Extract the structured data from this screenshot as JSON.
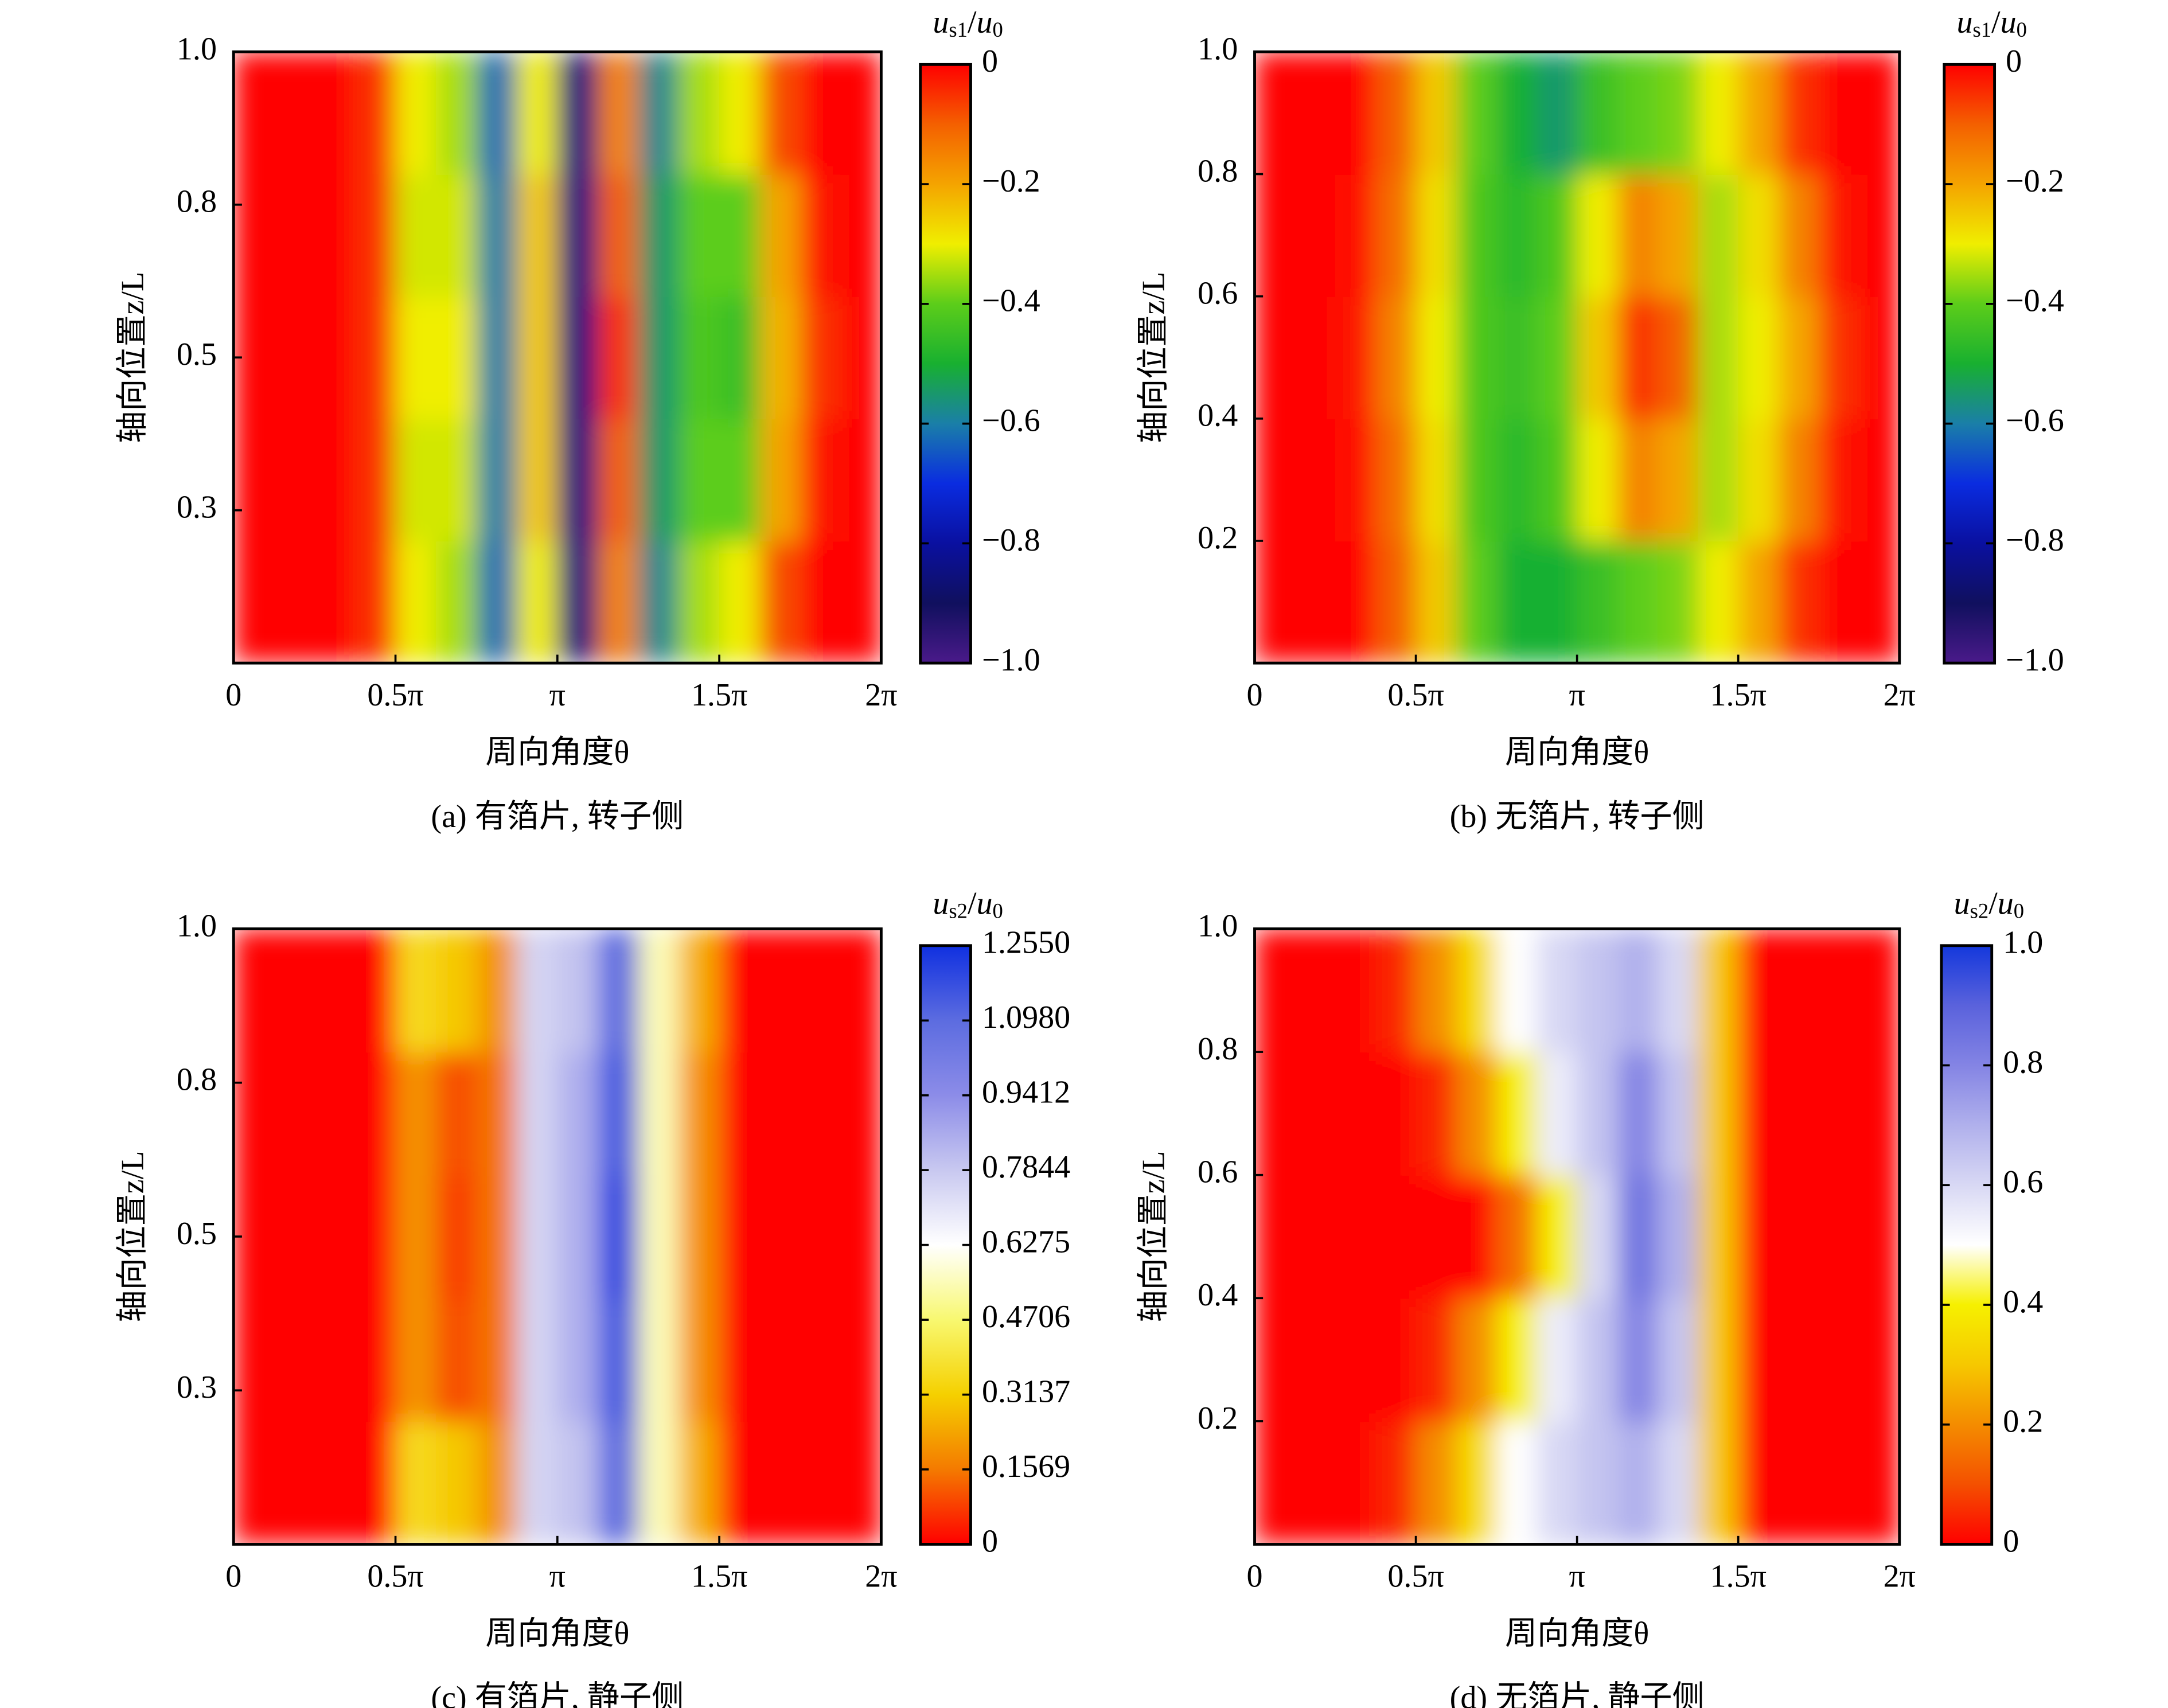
{
  "chart_data": [
    {
      "type": "heatmap",
      "caption": "(a) 有箔片, 转子侧",
      "x_label": "周向角度θ",
      "y_label": "轴向位置z/L",
      "colorbar_label": [
        "u",
        "s1",
        "/u",
        "0"
      ],
      "x": [
        0.1963,
        0.589,
        0.9817,
        1.3744,
        1.7671,
        2.1598,
        2.5525,
        2.9452,
        3.3379,
        3.7306,
        4.1233,
        4.516,
        4.9087,
        5.3014,
        5.6941,
        6.0868
      ],
      "y": [
        0.1,
        0.3,
        0.5,
        0.7,
        0.9
      ],
      "z": [
        [
          0,
          0,
          0,
          -0.05,
          -0.3,
          -0.35,
          -0.62,
          -0.3,
          -0.85,
          -0.15,
          -0.58,
          -0.35,
          -0.3,
          -0.08,
          0,
          0
        ],
        [
          0,
          0,
          0,
          -0.05,
          -0.32,
          -0.32,
          -0.6,
          -0.25,
          -0.85,
          -0.1,
          -0.55,
          -0.4,
          -0.4,
          -0.2,
          -0.02,
          0
        ],
        [
          0,
          0,
          0,
          -0.05,
          -0.3,
          -0.3,
          -0.6,
          -0.25,
          -0.85,
          -0.05,
          -0.55,
          -0.42,
          -0.45,
          -0.22,
          -0.05,
          0
        ],
        [
          0,
          0,
          0,
          -0.05,
          -0.32,
          -0.32,
          -0.6,
          -0.25,
          -0.85,
          -0.1,
          -0.55,
          -0.4,
          -0.4,
          -0.2,
          -0.02,
          0
        ],
        [
          0,
          0,
          0,
          -0.05,
          -0.3,
          -0.35,
          -0.62,
          -0.3,
          -0.85,
          -0.15,
          -0.58,
          -0.35,
          -0.3,
          -0.08,
          0,
          0
        ]
      ],
      "xlim": [
        0,
        6.2832
      ],
      "ylim": [
        0,
        1
      ],
      "xticks": [
        0,
        {
          "value": 1.5708,
          "label": "0.5π"
        },
        {
          "value": 3.1416,
          "label": "π"
        },
        {
          "value": 4.7124,
          "label": "1.5π"
        },
        {
          "value": 6.2832,
          "label": "2π"
        }
      ],
      "yticks": [
        {
          "value": 0.25,
          "label": "0.3"
        },
        0.5,
        {
          "value": 0.75,
          "label": "0.8"
        },
        {
          "value": 1,
          "label": "1.0"
        }
      ],
      "zlim": [
        -1,
        0
      ],
      "zticks": [
        {
          "value": -1,
          "label": "−1.0"
        },
        {
          "value": -0.8,
          "label": "−0.8"
        },
        {
          "value": -0.6,
          "label": "−0.6"
        },
        {
          "value": -0.4,
          "label": "−0.4"
        },
        {
          "value": -0.2,
          "label": "−0.2"
        },
        0
      ],
      "colormap": [
        "#4a1a8a",
        "#10105e",
        "#0a10a0",
        "#0a2ce0",
        "#1a7fa8",
        "#18b030",
        "#5ccd1a",
        "#f0ee00",
        "#f4a400",
        "#f46000",
        "#ff0000"
      ]
    },
    {
      "type": "heatmap",
      "caption": "(b) 无箔片, 转子侧",
      "x_label": "周向角度θ",
      "y_label": "轴向位置z/L",
      "colorbar_label": [
        "u",
        "s1",
        "/u",
        "0"
      ],
      "x": [
        0.1963,
        0.589,
        0.9817,
        1.3744,
        1.7671,
        2.1598,
        2.5525,
        2.9452,
        3.3379,
        3.7306,
        4.1233,
        4.516,
        4.9087,
        5.3014,
        5.6941,
        6.0868
      ],
      "y": [
        0.1,
        0.3,
        0.5,
        0.7,
        0.9
      ],
      "z": [
        [
          0,
          0,
          0,
          -0.1,
          -0.25,
          -0.4,
          -0.5,
          -0.5,
          -0.45,
          -0.4,
          -0.38,
          -0.3,
          -0.2,
          -0.05,
          0,
          0
        ],
        [
          0,
          0,
          -0.01,
          -0.12,
          -0.28,
          -0.42,
          -0.47,
          -0.42,
          -0.3,
          -0.15,
          -0.2,
          -0.35,
          -0.28,
          -0.15,
          -0.02,
          0
        ],
        [
          0,
          0,
          -0.02,
          -0.15,
          -0.3,
          -0.42,
          -0.45,
          -0.4,
          -0.25,
          -0.05,
          -0.1,
          -0.35,
          -0.3,
          -0.2,
          -0.05,
          0
        ],
        [
          0,
          0,
          -0.01,
          -0.12,
          -0.28,
          -0.42,
          -0.47,
          -0.42,
          -0.3,
          -0.15,
          -0.2,
          -0.35,
          -0.28,
          -0.15,
          -0.02,
          0
        ],
        [
          0,
          0,
          0,
          -0.1,
          -0.25,
          -0.4,
          -0.5,
          -0.55,
          -0.45,
          -0.4,
          -0.38,
          -0.3,
          -0.2,
          -0.05,
          0,
          0
        ]
      ],
      "xlim": [
        0,
        6.2832
      ],
      "ylim": [
        0,
        1
      ],
      "xticks": [
        0,
        {
          "value": 1.5708,
          "label": "0.5π"
        },
        {
          "value": 3.1416,
          "label": "π"
        },
        {
          "value": 4.7124,
          "label": "1.5π"
        },
        {
          "value": 6.2832,
          "label": "2π"
        }
      ],
      "yticks": [
        0.2,
        0.4,
        0.6,
        0.8,
        {
          "value": 1,
          "label": "1.0"
        }
      ],
      "zlim": [
        -1,
        0
      ],
      "zticks": [
        {
          "value": -1,
          "label": "−1.0"
        },
        {
          "value": -0.8,
          "label": "−0.8"
        },
        {
          "value": -0.6,
          "label": "−0.6"
        },
        {
          "value": -0.4,
          "label": "−0.4"
        },
        {
          "value": -0.2,
          "label": "−0.2"
        },
        0
      ],
      "colormap": [
        "#4a1a8a",
        "#10105e",
        "#0a10a0",
        "#0a2ce0",
        "#1a7fa8",
        "#18b030",
        "#5ccd1a",
        "#f0ee00",
        "#f4a400",
        "#f46000",
        "#ff0000"
      ]
    },
    {
      "type": "heatmap",
      "caption": "(c) 有箔片, 静子侧",
      "x_label": "周向角度θ",
      "y_label": "轴向位置z/L",
      "colorbar_label": [
        "u",
        "s2",
        "/u",
        "0"
      ],
      "x": [
        0.1963,
        0.589,
        0.9817,
        1.3744,
        1.7671,
        2.1598,
        2.5525,
        2.9452,
        3.3379,
        3.7306,
        4.1233,
        4.516,
        4.9087,
        5.3014,
        5.6941,
        6.0868
      ],
      "y": [
        0.1,
        0.3,
        0.5,
        0.7,
        0.9
      ],
      "z": [
        [
          0,
          0,
          0,
          0,
          0.35,
          0.3,
          0.2,
          0.75,
          0.8,
          1.1,
          0.55,
          0.25,
          0,
          0,
          0,
          0
        ],
        [
          0,
          0,
          0,
          0,
          0.2,
          0.1,
          0.15,
          0.75,
          0.85,
          1.15,
          0.55,
          0.2,
          0,
          0,
          0,
          0
        ],
        [
          0,
          0,
          0,
          0,
          0.2,
          0.08,
          0.15,
          0.75,
          0.85,
          1.2,
          0.55,
          0.2,
          0,
          0,
          0,
          0
        ],
        [
          0,
          0,
          0,
          0,
          0.2,
          0.1,
          0.15,
          0.75,
          0.85,
          1.15,
          0.55,
          0.2,
          0,
          0,
          0,
          0
        ],
        [
          0,
          0,
          0,
          0,
          0.35,
          0.3,
          0.2,
          0.75,
          0.8,
          1.1,
          0.55,
          0.25,
          0,
          0,
          0,
          0
        ]
      ],
      "xlim": [
        0,
        6.2832
      ],
      "ylim": [
        0,
        1
      ],
      "xticks": [
        0,
        {
          "value": 1.5708,
          "label": "0.5π"
        },
        {
          "value": 3.1416,
          "label": "π"
        },
        {
          "value": 4.7124,
          "label": "1.5π"
        },
        {
          "value": 6.2832,
          "label": "2π"
        }
      ],
      "yticks": [
        {
          "value": 0.25,
          "label": "0.3"
        },
        0.5,
        {
          "value": 0.75,
          "label": "0.8"
        },
        {
          "value": 1,
          "label": "1.0"
        }
      ],
      "zlim": [
        0,
        1.255
      ],
      "zticks": [
        0,
        0.1569,
        0.3137,
        0.4706,
        0.6275,
        0.7844,
        0.9412,
        {
          "value": 1.098,
          "label": "1.0980"
        },
        {
          "value": 1.255,
          "label": "1.2550"
        }
      ],
      "colormap": [
        "#ff0000",
        "#f47a00",
        "#f5d000",
        "#f8f870",
        "#ffffff",
        "#c8c8f0",
        "#8c8ce8",
        "#5c6ce0",
        "#1030e0"
      ]
    },
    {
      "type": "heatmap",
      "caption": "(d) 无箔片, 静子侧",
      "x_label": "周向角度θ",
      "y_label": "轴向位置z/L",
      "colorbar_label": [
        "u",
        "s2",
        "/u",
        "0"
      ],
      "x": [
        0.1963,
        0.589,
        0.9817,
        1.3744,
        1.7671,
        2.1598,
        2.5525,
        2.9452,
        3.3379,
        3.7306,
        4.1233,
        4.516,
        4.9087,
        5.3014,
        5.6941,
        6.0868
      ],
      "y": [
        0.1,
        0.3,
        0.5,
        0.7,
        0.9
      ],
      "z": [
        [
          0,
          0,
          0,
          0.05,
          0.2,
          0.35,
          0.5,
          0.6,
          0.65,
          0.7,
          0.6,
          0.3,
          0,
          0,
          0,
          0
        ],
        [
          0,
          0,
          0,
          0,
          0.05,
          0.2,
          0.4,
          0.55,
          0.65,
          0.8,
          0.65,
          0.3,
          0,
          0,
          0,
          0
        ],
        [
          0,
          0,
          0,
          0,
          0,
          0,
          0.15,
          0.4,
          0.6,
          0.85,
          0.7,
          0.3,
          0,
          0,
          0,
          0
        ],
        [
          0,
          0,
          0,
          0,
          0.05,
          0.2,
          0.4,
          0.55,
          0.65,
          0.8,
          0.65,
          0.3,
          0,
          0,
          0,
          0
        ],
        [
          0,
          0,
          0,
          0.05,
          0.2,
          0.35,
          0.5,
          0.6,
          0.65,
          0.7,
          0.6,
          0.3,
          0,
          0,
          0,
          0
        ]
      ],
      "xlim": [
        0,
        6.2832
      ],
      "ylim": [
        0,
        1
      ],
      "xticks": [
        0,
        {
          "value": 1.5708,
          "label": "0.5π"
        },
        {
          "value": 3.1416,
          "label": "π"
        },
        {
          "value": 4.7124,
          "label": "1.5π"
        },
        {
          "value": 6.2832,
          "label": "2π"
        }
      ],
      "yticks": [
        0.2,
        0.4,
        0.6,
        0.8,
        {
          "value": 1,
          "label": "1.0"
        }
      ],
      "zlim": [
        0,
        1
      ],
      "zticks": [
        0,
        0.2,
        0.4,
        0.6,
        0.8,
        {
          "value": 1,
          "label": "1.0"
        }
      ],
      "colormap": [
        "#ff0000",
        "#f45000",
        "#f48c00",
        "#f6c800",
        "#f6f000",
        "#ffffff",
        "#d8d8f4",
        "#b0b0ec",
        "#8484e4",
        "#5a62dc",
        "#1438dc"
      ]
    }
  ]
}
